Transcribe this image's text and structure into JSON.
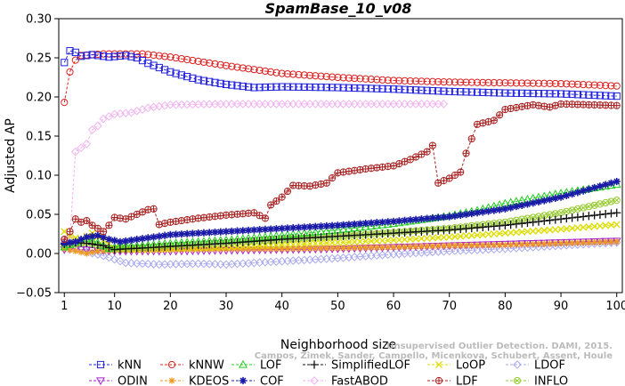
{
  "chart_data": {
    "type": "line",
    "title": "SpamBase_10_v08",
    "xlabel": "Neighborhood size",
    "ylabel": "Adjusted AP",
    "xlim": [
      0,
      101
    ],
    "ylim": [
      -0.05,
      0.3
    ],
    "xticks": [
      1,
      10,
      20,
      30,
      40,
      50,
      60,
      70,
      80,
      90,
      100
    ],
    "yticks": [
      -0.05,
      0.0,
      0.05,
      0.1,
      0.15,
      0.2,
      0.25,
      0.3
    ],
    "ytick_labels": [
      "−0.05",
      "0.00",
      "0.05",
      "0.10",
      "0.15",
      "0.20",
      "0.25",
      "0.30"
    ],
    "watermark": "Campos, Zimek, Sander, Campello, Micenkova, Schubert, Assent, Houle",
    "watermark_top": "Unsupervised Outlier Detection. DAMI, 2015.",
    "legend": {
      "position": "bottom",
      "columns": 6
    },
    "series": [
      {
        "name": "kNN",
        "color": "#2222dd",
        "marker": "square",
        "anchors": [
          [
            1,
            0.244
          ],
          [
            2,
            0.259
          ],
          [
            3,
            0.257
          ],
          [
            4,
            0.252
          ],
          [
            6,
            0.254
          ],
          [
            9,
            0.251
          ],
          [
            12,
            0.253
          ],
          [
            14,
            0.25
          ],
          [
            16,
            0.243
          ],
          [
            20,
            0.232
          ],
          [
            25,
            0.222
          ],
          [
            30,
            0.216
          ],
          [
            35,
            0.212
          ],
          [
            40,
            0.213
          ],
          [
            50,
            0.212
          ],
          [
            60,
            0.21
          ],
          [
            70,
            0.207
          ],
          [
            80,
            0.205
          ],
          [
            90,
            0.204
          ],
          [
            100,
            0.201
          ]
        ]
      },
      {
        "name": "kNNW",
        "color": "#dd2222",
        "marker": "circle",
        "anchors": [
          [
            1,
            0.193
          ],
          [
            2,
            0.232
          ],
          [
            3,
            0.247
          ],
          [
            4,
            0.253
          ],
          [
            8,
            0.255
          ],
          [
            15,
            0.255
          ],
          [
            20,
            0.251
          ],
          [
            30,
            0.24
          ],
          [
            40,
            0.23
          ],
          [
            50,
            0.225
          ],
          [
            60,
            0.221
          ],
          [
            70,
            0.219
          ],
          [
            80,
            0.218
          ],
          [
            90,
            0.217
          ],
          [
            100,
            0.214
          ]
        ]
      },
      {
        "name": "LOF",
        "color": "#22cc22",
        "marker": "triangle",
        "anchors": [
          [
            1,
            0.008
          ],
          [
            3,
            0.014
          ],
          [
            5,
            0.019
          ],
          [
            7,
            0.014
          ],
          [
            9,
            0.006
          ],
          [
            11,
            0.01
          ],
          [
            15,
            0.01
          ],
          [
            20,
            0.013
          ],
          [
            30,
            0.017
          ],
          [
            40,
            0.023
          ],
          [
            50,
            0.03
          ],
          [
            60,
            0.038
          ],
          [
            70,
            0.048
          ],
          [
            75,
            0.055
          ],
          [
            80,
            0.064
          ],
          [
            90,
            0.077
          ],
          [
            100,
            0.088
          ]
        ]
      },
      {
        "name": "SimplifiedLOF",
        "color": "#111111",
        "marker": "plus",
        "anchors": [
          [
            1,
            0.012
          ],
          [
            3,
            0.014
          ],
          [
            5,
            0.013
          ],
          [
            8,
            0.01
          ],
          [
            10,
            0.005
          ],
          [
            15,
            0.007
          ],
          [
            20,
            0.009
          ],
          [
            30,
            0.013
          ],
          [
            40,
            0.018
          ],
          [
            50,
            0.022
          ],
          [
            60,
            0.026
          ],
          [
            70,
            0.03
          ],
          [
            80,
            0.036
          ],
          [
            90,
            0.044
          ],
          [
            100,
            0.052
          ]
        ]
      },
      {
        "name": "LoOP",
        "color": "#dddd00",
        "marker": "cross",
        "anchors": [
          [
            1,
            0.028
          ],
          [
            2,
            0.022
          ],
          [
            4,
            0.018
          ],
          [
            6,
            0.026
          ],
          [
            8,
            0.017
          ],
          [
            10,
            0.007
          ],
          [
            15,
            0.005
          ],
          [
            20,
            0.006
          ],
          [
            30,
            0.008
          ],
          [
            40,
            0.011
          ],
          [
            50,
            0.014
          ],
          [
            60,
            0.017
          ],
          [
            70,
            0.021
          ],
          [
            80,
            0.026
          ],
          [
            90,
            0.031
          ],
          [
            100,
            0.037
          ]
        ]
      },
      {
        "name": "LDOF",
        "color": "#aaaaee",
        "marker": "diamond",
        "anchors": [
          [
            1,
            0.014
          ],
          [
            3,
            0.008
          ],
          [
            5,
            0.002
          ],
          [
            8,
            -0.003
          ],
          [
            12,
            -0.012
          ],
          [
            18,
            -0.014
          ],
          [
            25,
            -0.013
          ],
          [
            30,
            -0.014
          ],
          [
            35,
            -0.012
          ],
          [
            40,
            -0.01
          ],
          [
            50,
            -0.006
          ],
          [
            60,
            -0.001
          ],
          [
            70,
            0.003
          ],
          [
            80,
            0.006
          ],
          [
            90,
            0.01
          ],
          [
            100,
            0.014
          ]
        ]
      },
      {
        "name": "ODIN",
        "color": "#aa22cc",
        "marker": "triangle-down",
        "anchors": [
          [
            1,
            0.005
          ],
          [
            3,
            0.006
          ],
          [
            6,
            0.004
          ],
          [
            10,
            0.003
          ],
          [
            20,
            0.003
          ],
          [
            30,
            0.004
          ],
          [
            40,
            0.005
          ],
          [
            50,
            0.006
          ],
          [
            60,
            0.008
          ],
          [
            70,
            0.01
          ],
          [
            80,
            0.012
          ],
          [
            90,
            0.014
          ],
          [
            100,
            0.016
          ]
        ]
      },
      {
        "name": "KDEOS",
        "color": "#ee9922",
        "marker": "asterisk",
        "anchors": [
          [
            1,
            0.006
          ],
          [
            3,
            0.003
          ],
          [
            5,
            0.0
          ],
          [
            7,
            0.003
          ],
          [
            10,
            0.004
          ],
          [
            20,
            0.005
          ],
          [
            30,
            0.006
          ],
          [
            40,
            0.006
          ],
          [
            50,
            0.007
          ],
          [
            60,
            0.008
          ],
          [
            70,
            0.01
          ],
          [
            80,
            0.011
          ],
          [
            90,
            0.013
          ],
          [
            100,
            0.015
          ]
        ]
      },
      {
        "name": "COF",
        "color": "#1a1aa8",
        "marker": "star",
        "anchors": [
          [
            1,
            0.013
          ],
          [
            3,
            0.015
          ],
          [
            5,
            0.021
          ],
          [
            7,
            0.023
          ],
          [
            9,
            0.018
          ],
          [
            11,
            0.015
          ],
          [
            15,
            0.019
          ],
          [
            20,
            0.024
          ],
          [
            30,
            0.028
          ],
          [
            40,
            0.032
          ],
          [
            50,
            0.036
          ],
          [
            60,
            0.041
          ],
          [
            70,
            0.047
          ],
          [
            80,
            0.057
          ],
          [
            90,
            0.072
          ],
          [
            100,
            0.092
          ]
        ]
      },
      {
        "name": "FastABOD",
        "color": "#f0b4f0",
        "marker": "diamond",
        "anchors": [
          [
            1,
            0.018
          ],
          [
            2,
            0.02
          ],
          [
            3,
            0.13
          ],
          [
            4,
            0.135
          ],
          [
            5,
            0.14
          ],
          [
            6,
            0.158
          ],
          [
            7,
            0.163
          ],
          [
            8,
            0.172
          ],
          [
            10,
            0.178
          ],
          [
            13,
            0.18
          ],
          [
            16,
            0.186
          ],
          [
            20,
            0.19
          ],
          [
            30,
            0.191
          ],
          [
            40,
            0.191
          ],
          [
            50,
            0.191
          ],
          [
            60,
            0.191
          ],
          [
            69,
            0.191
          ]
        ]
      },
      {
        "name": "LDF",
        "color": "#aa2222",
        "marker": "circle-plus",
        "anchors": [
          [
            1,
            0.018
          ],
          [
            2,
            0.028
          ],
          [
            3,
            0.044
          ],
          [
            4,
            0.04
          ],
          [
            5,
            0.042
          ],
          [
            6,
            0.036
          ],
          [
            7,
            0.032
          ],
          [
            8,
            0.028
          ],
          [
            9,
            0.036
          ],
          [
            10,
            0.046
          ],
          [
            12,
            0.044
          ],
          [
            14,
            0.05
          ],
          [
            15,
            0.053
          ],
          [
            16,
            0.056
          ],
          [
            17,
            0.057
          ],
          [
            18,
            0.037
          ],
          [
            20,
            0.04
          ],
          [
            25,
            0.045
          ],
          [
            30,
            0.049
          ],
          [
            35,
            0.052
          ],
          [
            37,
            0.045
          ],
          [
            38,
            0.062
          ],
          [
            40,
            0.072
          ],
          [
            42,
            0.087
          ],
          [
            45,
            0.086
          ],
          [
            48,
            0.09
          ],
          [
            50,
            0.103
          ],
          [
            55,
            0.108
          ],
          [
            60,
            0.112
          ],
          [
            63,
            0.12
          ],
          [
            66,
            0.13
          ],
          [
            67,
            0.138
          ],
          [
            68,
            0.09
          ],
          [
            70,
            0.096
          ],
          [
            72,
            0.104
          ],
          [
            73,
            0.128
          ],
          [
            75,
            0.165
          ],
          [
            78,
            0.17
          ],
          [
            80,
            0.184
          ],
          [
            85,
            0.19
          ],
          [
            88,
            0.187
          ],
          [
            90,
            0.191
          ],
          [
            95,
            0.19
          ],
          [
            100,
            0.189
          ]
        ]
      },
      {
        "name": "INFLO",
        "color": "#99cc33",
        "marker": "circle-cross",
        "anchors": [
          [
            1,
            0.01
          ],
          [
            3,
            0.012
          ],
          [
            5,
            0.014
          ],
          [
            7,
            0.01
          ],
          [
            10,
            0.006
          ],
          [
            15,
            0.008
          ],
          [
            20,
            0.01
          ],
          [
            30,
            0.014
          ],
          [
            40,
            0.018
          ],
          [
            50,
            0.022
          ],
          [
            60,
            0.027
          ],
          [
            70,
            0.032
          ],
          [
            80,
            0.04
          ],
          [
            90,
            0.052
          ],
          [
            100,
            0.068
          ]
        ]
      }
    ]
  }
}
